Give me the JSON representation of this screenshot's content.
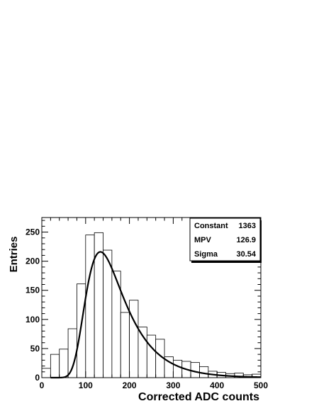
{
  "chart_data": {
    "type": "bar",
    "xlabel": "Corrected ADC counts",
    "ylabel": "Entries",
    "xlim": [
      0,
      500
    ],
    "ylim": [
      0,
      275
    ],
    "x_ticks": [
      0,
      100,
      200,
      300,
      400,
      500
    ],
    "y_ticks": [
      0,
      50,
      100,
      150,
      200,
      250
    ],
    "grid": false,
    "bin_width": 20,
    "bin_edges": [
      0,
      20,
      40,
      60,
      80,
      100,
      120,
      140,
      160,
      180,
      200,
      220,
      240,
      260,
      280,
      300,
      320,
      340,
      360,
      380,
      400,
      420,
      440,
      460,
      480,
      500
    ],
    "values": [
      16,
      40,
      49,
      84,
      161,
      245,
      249,
      219,
      183,
      112,
      133,
      87,
      73,
      66,
      36,
      30,
      28,
      26,
      19,
      11,
      9,
      7,
      8,
      5,
      6
    ],
    "fit": {
      "function": "landau",
      "constant": 1363,
      "mpv": 126.9,
      "sigma": 30.54
    },
    "stats_box": {
      "rows": [
        {
          "label": "Constant",
          "value": "1363"
        },
        {
          "label": "MPV",
          "value": "126.9"
        },
        {
          "label": "Sigma",
          "value": "30.54"
        }
      ],
      "placement": "top-right"
    }
  }
}
